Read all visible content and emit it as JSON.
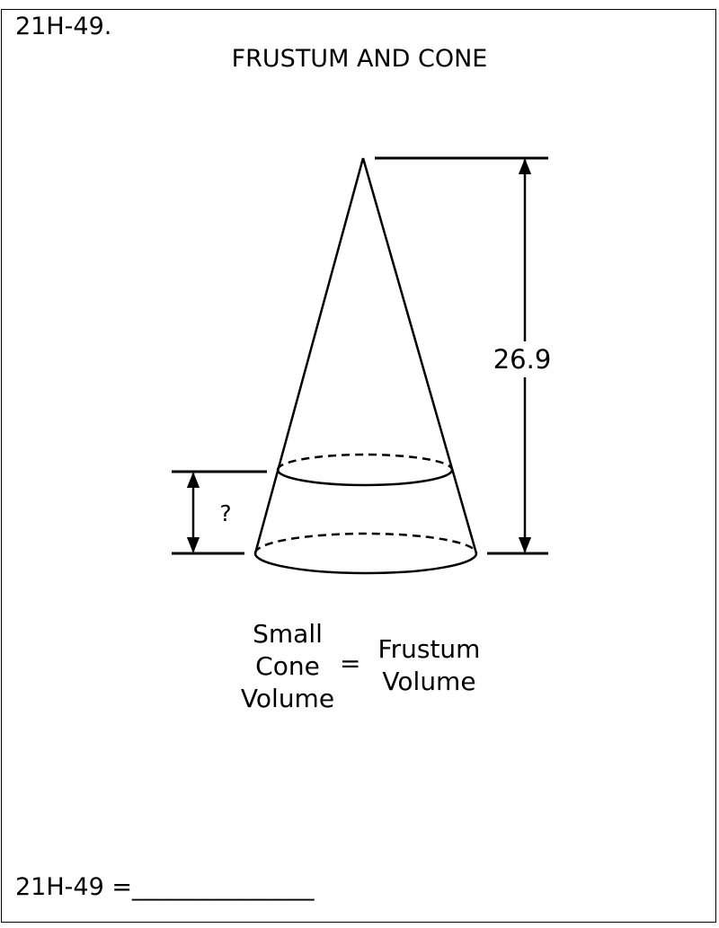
{
  "header": {
    "problem_id": "21H-49.",
    "title": "FRUSTUM AND CONE"
  },
  "diagram": {
    "total_height_label": "26.9",
    "frustum_height_label": "?"
  },
  "equation": {
    "left_line1": "Small",
    "left_line2": "Cone",
    "left_line3": "Volume",
    "equals": "=",
    "right_line1": "Frustum",
    "right_line2": "Volume"
  },
  "answer": {
    "line": "21H-49 =_______________"
  }
}
